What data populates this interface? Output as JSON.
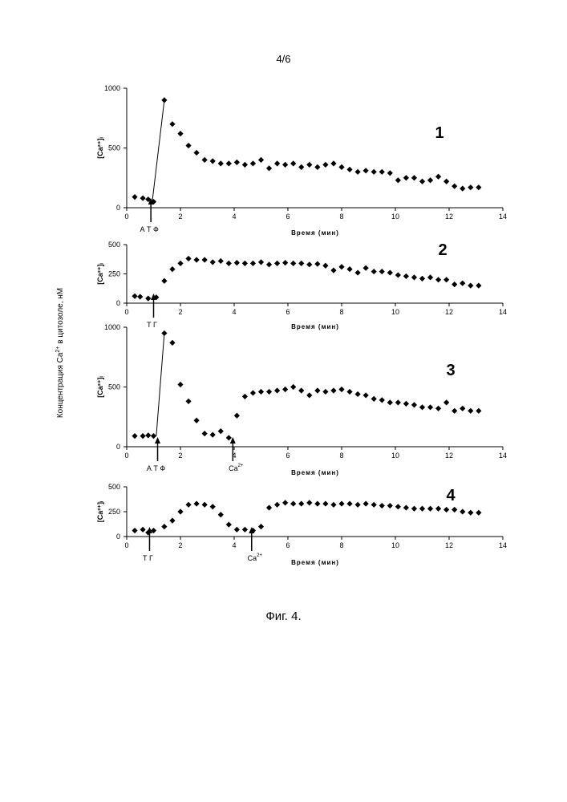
{
  "page_number": "4/6",
  "figure_caption": "Фиг. 4.",
  "shared_ylabel": "Концентрация Ca",
  "shared_ylabel_sup": "2+",
  "shared_ylabel_rest": " в цитозоле, нМ",
  "chart_data": [
    {
      "type": "scatter",
      "panel_label": "1",
      "ylabel": "[Ca²⁺]ᵢ",
      "xlabel": "Время (мин)",
      "xlim": [
        0,
        14
      ],
      "ylim": [
        0,
        1000
      ],
      "xticks": [
        "0",
        "2",
        "4",
        "6",
        "8",
        "10",
        "12",
        "14"
      ],
      "yticks": [
        "0",
        "500",
        "1000"
      ],
      "connected_segment": [
        [
          0.95,
          50
        ],
        [
          1.4,
          900
        ]
      ],
      "markers": [
        {
          "label": "А Т Ф",
          "x": 0.9
        }
      ],
      "series": [
        {
          "x": [
            0.3,
            0.6,
            0.8,
            1.0,
            1.4,
            1.7,
            2.0,
            2.3,
            2.6,
            2.9,
            3.2,
            3.5,
            3.8,
            4.1,
            4.4,
            4.7,
            5.0,
            5.3,
            5.6,
            5.9,
            6.2,
            6.5,
            6.8,
            7.1,
            7.4,
            7.7,
            8.0,
            8.3,
            8.6,
            8.9,
            9.2,
            9.5,
            9.8,
            10.1,
            10.4,
            10.7,
            11.0,
            11.3,
            11.6,
            11.9,
            12.2,
            12.5,
            12.8,
            13.1
          ],
          "y": [
            90,
            80,
            70,
            50,
            900,
            700,
            620,
            520,
            460,
            400,
            390,
            370,
            370,
            380,
            360,
            370,
            400,
            330,
            370,
            360,
            370,
            340,
            360,
            340,
            360,
            370,
            340,
            320,
            300,
            310,
            300,
            300,
            290,
            230,
            250,
            250,
            220,
            230,
            260,
            220,
            180,
            160,
            170,
            170
          ]
        }
      ]
    },
    {
      "type": "scatter",
      "panel_label": "2",
      "ylabel": "[Ca²⁺]ᵢ",
      "xlabel": "Время (мин)",
      "xlim": [
        0,
        14
      ],
      "ylim": [
        0,
        500
      ],
      "xticks": [
        "0",
        "2",
        "4",
        "6",
        "8",
        "10",
        "12",
        "14"
      ],
      "yticks": [
        "0",
        "250",
        "500"
      ],
      "markers": [
        {
          "label": "Т Г",
          "x": 1.0
        }
      ],
      "series": [
        {
          "x": [
            0.3,
            0.5,
            0.8,
            1.1,
            1.4,
            1.7,
            2.0,
            2.3,
            2.6,
            2.9,
            3.2,
            3.5,
            3.8,
            4.1,
            4.4,
            4.7,
            5.0,
            5.3,
            5.6,
            5.9,
            6.2,
            6.5,
            6.8,
            7.1,
            7.4,
            7.7,
            8.0,
            8.3,
            8.6,
            8.9,
            9.2,
            9.5,
            9.8,
            10.1,
            10.4,
            10.7,
            11.0,
            11.3,
            11.6,
            11.9,
            12.2,
            12.5,
            12.8,
            13.1
          ],
          "y": [
            60,
            55,
            40,
            50,
            190,
            290,
            340,
            380,
            370,
            370,
            350,
            360,
            340,
            345,
            340,
            340,
            350,
            330,
            340,
            345,
            340,
            340,
            330,
            335,
            320,
            280,
            310,
            290,
            260,
            300,
            270,
            270,
            260,
            240,
            230,
            220,
            210,
            220,
            200,
            200,
            160,
            170,
            150,
            150
          ]
        }
      ]
    },
    {
      "type": "scatter",
      "panel_label": "3",
      "ylabel": "[Ca²⁺]ᵢ",
      "xlabel": "Время (мин)",
      "xlim": [
        0,
        14
      ],
      "ylim": [
        0,
        1000
      ],
      "xticks": [
        "0",
        "2",
        "4",
        "6",
        "8",
        "10",
        "12",
        "14"
      ],
      "yticks": [
        "0",
        "500",
        "1000"
      ],
      "connected_segment": [
        [
          1.1,
          90
        ],
        [
          1.4,
          950
        ]
      ],
      "markers": [
        {
          "label": "А Т Ф",
          "x": 1.15
        },
        {
          "label": "Ca",
          "sup": "2+",
          "x": 3.95
        }
      ],
      "series": [
        {
          "x": [
            0.3,
            0.6,
            0.8,
            1.0,
            1.4,
            1.7,
            2.0,
            2.3,
            2.6,
            2.9,
            3.2,
            3.5,
            3.8,
            4.1,
            4.4,
            4.7,
            5.0,
            5.3,
            5.6,
            5.9,
            6.2,
            6.5,
            6.8,
            7.1,
            7.4,
            7.7,
            8.0,
            8.3,
            8.6,
            8.9,
            9.2,
            9.5,
            9.8,
            10.1,
            10.4,
            10.7,
            11.0,
            11.3,
            11.6,
            11.9,
            12.2,
            12.5,
            12.8,
            13.1
          ],
          "y": [
            90,
            90,
            95,
            90,
            950,
            870,
            520,
            380,
            220,
            110,
            100,
            130,
            75,
            260,
            420,
            450,
            460,
            460,
            470,
            480,
            500,
            470,
            430,
            470,
            460,
            470,
            480,
            460,
            440,
            430,
            400,
            390,
            370,
            370,
            360,
            350,
            330,
            330,
            320,
            370,
            300,
            320,
            300,
            300
          ]
        }
      ]
    },
    {
      "type": "scatter",
      "panel_label": "4",
      "ylabel": "[Ca²⁺]ᵢ",
      "xlabel": "Время (мин)",
      "xlim": [
        0,
        14
      ],
      "ylim": [
        0,
        500
      ],
      "xticks": [
        "0",
        "2",
        "4",
        "6",
        "8",
        "10",
        "12",
        "14"
      ],
      "yticks": [
        "0",
        "250",
        "500"
      ],
      "markers": [
        {
          "label": "Т Г",
          "x": 0.85
        },
        {
          "label": "Ca",
          "sup": "2+",
          "x": 4.65
        }
      ],
      "series": [
        {
          "x": [
            0.3,
            0.6,
            0.8,
            1.0,
            1.4,
            1.7,
            2.0,
            2.3,
            2.6,
            2.9,
            3.2,
            3.5,
            3.8,
            4.1,
            4.4,
            4.7,
            5.0,
            5.3,
            5.6,
            5.9,
            6.2,
            6.5,
            6.8,
            7.1,
            7.4,
            7.7,
            8.0,
            8.3,
            8.6,
            8.9,
            9.2,
            9.5,
            9.8,
            10.1,
            10.4,
            10.7,
            11.0,
            11.3,
            11.6,
            11.9,
            12.2,
            12.5,
            12.8,
            13.1
          ],
          "y": [
            60,
            70,
            40,
            60,
            100,
            160,
            250,
            320,
            330,
            320,
            300,
            220,
            120,
            70,
            70,
            60,
            100,
            290,
            320,
            340,
            330,
            330,
            340,
            330,
            330,
            320,
            330,
            330,
            320,
            330,
            320,
            310,
            310,
            300,
            290,
            280,
            280,
            280,
            280,
            270,
            270,
            250,
            240,
            240
          ]
        }
      ]
    }
  ]
}
